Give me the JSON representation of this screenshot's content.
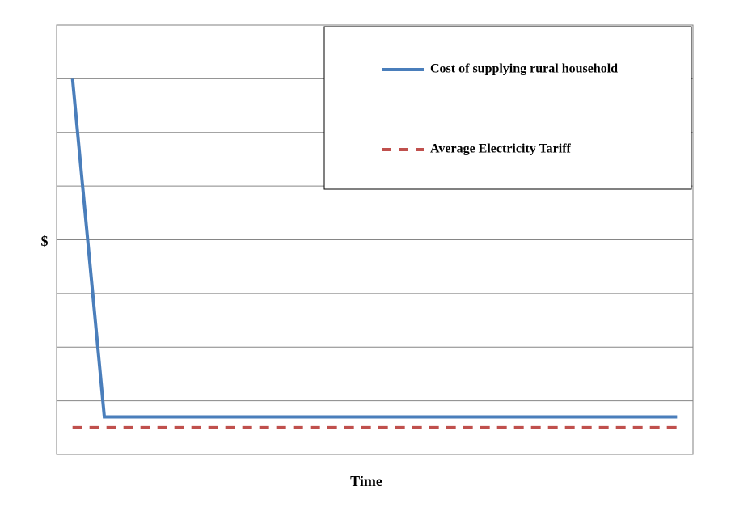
{
  "chart_data": {
    "type": "line",
    "x_label": "Time",
    "y_label": "$",
    "series": [
      {
        "name": "Cost of supplying rural household",
        "color": "#4a7ebb",
        "dash": false,
        "x": [
          1,
          3,
          39
        ],
        "values": [
          7,
          0.7,
          0.7
        ]
      },
      {
        "name": "Average Electricity Tariff",
        "color": "#c0504d",
        "dash": true,
        "x": [
          1,
          39
        ],
        "values": [
          0.5,
          0.5
        ]
      }
    ],
    "xlim": [
      0,
      40
    ],
    "ylim": [
      0,
      8
    ],
    "yticks": [
      1,
      2,
      3,
      4,
      5,
      6,
      7
    ],
    "grid": true,
    "legend": "top-right"
  }
}
